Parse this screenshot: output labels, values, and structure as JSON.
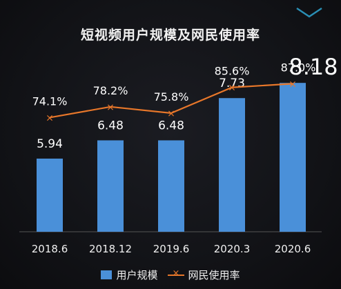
{
  "chart_data": {
    "type": "bar",
    "title": "短视频用户规模及网民使用率",
    "categories": [
      "2018.6",
      "2018.12",
      "2019.6",
      "2020.3",
      "2020.6"
    ],
    "series": [
      {
        "name": "用户规模",
        "type": "bar",
        "values": [
          5.94,
          6.48,
          6.48,
          7.73,
          8.18
        ],
        "labels": [
          "5.94",
          "6.48",
          "6.48",
          "7.73",
          "8.18"
        ],
        "color": "#4a90d9"
      },
      {
        "name": "网民使用率",
        "type": "line",
        "values": [
          74.1,
          78.2,
          75.8,
          85.6,
          87.0
        ],
        "labels": [
          "74.1%",
          "78.2%",
          "75.8%",
          "85.6%",
          "87.0%"
        ],
        "color": "#e8772a"
      }
    ],
    "highlight_index": 4,
    "grid": false,
    "legend": "bottom"
  },
  "decoration": {
    "icon": "chevron-down-icon",
    "color": "#2a8fb5"
  }
}
